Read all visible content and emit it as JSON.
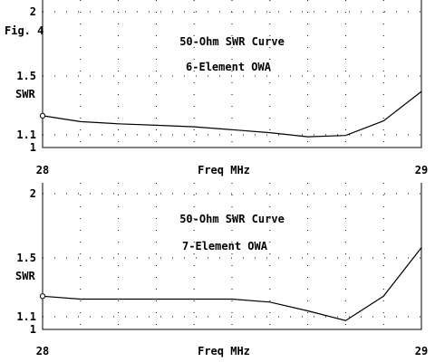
{
  "figure_label": "Fig. 4",
  "chart_data": [
    {
      "type": "line",
      "title": "50-Ohm SWR Curve",
      "subtitle": "6-Element OWA",
      "xlabel": "Freq MHz",
      "ylabel": "SWR",
      "xlim": [
        28,
        29
      ],
      "ylim": [
        1,
        2
      ],
      "x_tick_labels": [
        "28",
        "29"
      ],
      "y_ticks": [
        1,
        1.1,
        1.5,
        2
      ],
      "y_tick_labels": [
        "1",
        "1.1",
        "1.5",
        "2"
      ],
      "grid": true,
      "x": [
        28.0,
        28.1,
        28.2,
        28.3,
        28.4,
        28.5,
        28.6,
        28.7,
        28.8,
        28.9,
        29.0
      ],
      "values": [
        1.23,
        1.19,
        1.175,
        1.165,
        1.155,
        1.135,
        1.115,
        1.085,
        1.095,
        1.195,
        1.395
      ]
    },
    {
      "type": "line",
      "title": "50-Ohm SWR Curve",
      "subtitle": "7-Element OWA",
      "xlabel": "Freq MHz",
      "ylabel": "SWR",
      "xlim": [
        28,
        29
      ],
      "ylim": [
        1,
        2
      ],
      "x_tick_labels": [
        "28",
        "29"
      ],
      "y_ticks": [
        1,
        1.1,
        1.5,
        2
      ],
      "y_tick_labels": [
        "1",
        "1.1",
        "1.5",
        "2"
      ],
      "grid": true,
      "x": [
        28.0,
        28.1,
        28.2,
        28.3,
        28.4,
        28.5,
        28.6,
        28.7,
        28.8,
        28.9,
        29.0
      ],
      "values": [
        1.24,
        1.22,
        1.22,
        1.22,
        1.22,
        1.22,
        1.2,
        1.14,
        1.07,
        1.24,
        1.58
      ]
    }
  ]
}
